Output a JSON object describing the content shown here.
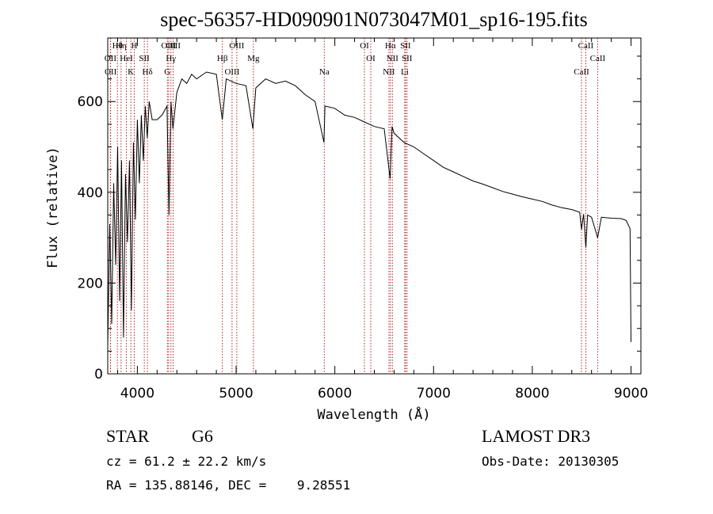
{
  "chart_data": {
    "type": "line",
    "title": "spec-56357-HD090901N073047M01_sp16-195.fits",
    "xlabel": "Wavelength (Å)",
    "ylabel": "Flux (relative)",
    "xlim": [
      3700,
      9100
    ],
    "ylim": [
      0,
      740
    ],
    "xticks": [
      4000,
      5000,
      6000,
      7000,
      8000,
      9000
    ],
    "yticks": [
      0,
      200,
      400,
      600
    ],
    "grid": false,
    "series": [
      {
        "name": "spectrum",
        "x": [
          3700,
          3720,
          3740,
          3760,
          3780,
          3800,
          3820,
          3840,
          3860,
          3880,
          3900,
          3920,
          3940,
          3960,
          3980,
          4000,
          4020,
          4040,
          4060,
          4080,
          4100,
          4120,
          4150,
          4200,
          4250,
          4300,
          4320,
          4340,
          4360,
          4400,
          4450,
          4500,
          4550,
          4600,
          4700,
          4800,
          4860,
          4900,
          5000,
          5100,
          5170,
          5200,
          5300,
          5400,
          5500,
          5600,
          5700,
          5800,
          5890,
          5900,
          6000,
          6100,
          6200,
          6300,
          6400,
          6500,
          6560,
          6580,
          6600,
          6700,
          6800,
          6900,
          7000,
          7100,
          7200,
          7300,
          7400,
          7500,
          7600,
          7700,
          7800,
          7900,
          8000,
          8100,
          8200,
          8300,
          8400,
          8480,
          8498,
          8520,
          8542,
          8560,
          8600,
          8662,
          8700,
          8800,
          8900,
          8950,
          8990,
          9000
        ],
        "y": [
          60,
          330,
          110,
          420,
          240,
          500,
          160,
          470,
          80,
          440,
          290,
          470,
          140,
          510,
          340,
          560,
          420,
          570,
          470,
          590,
          520,
          600,
          560,
          560,
          570,
          590,
          350,
          600,
          540,
          620,
          650,
          640,
          660,
          650,
          665,
          660,
          560,
          650,
          640,
          635,
          540,
          630,
          650,
          640,
          645,
          635,
          615,
          600,
          510,
          590,
          585,
          570,
          565,
          555,
          545,
          540,
          430,
          545,
          530,
          510,
          500,
          485,
          470,
          455,
          445,
          435,
          425,
          418,
          410,
          402,
          396,
          390,
          385,
          380,
          372,
          366,
          362,
          356,
          318,
          352,
          278,
          350,
          345,
          300,
          345,
          343,
          342,
          338,
          320,
          70
        ]
      }
    ],
    "lines": [
      {
        "name": "Hθ",
        "x": 3798
      },
      {
        "name": "OII",
        "x": 3727
      },
      {
        "name": "OII",
        "x": 3729
      },
      {
        "name": "Hη",
        "x": 3835
      },
      {
        "name": "HeI",
        "x": 3889
      },
      {
        "name": "K",
        "x": 3934
      },
      {
        "name": "H",
        "x": 3969
      },
      {
        "name": "SII",
        "x": 4070
      },
      {
        "name": "Hδ",
        "x": 4102
      },
      {
        "name": "OIII",
        "x": 4317
      },
      {
        "name": "Hγ",
        "x": 4340
      },
      {
        "name": "G",
        "x": 4304
      },
      {
        "name": "OIII",
        "x": 4363
      },
      {
        "name": "Hβ",
        "x": 4861
      },
      {
        "name": "OIII",
        "x": 4959
      },
      {
        "name": "OIII",
        "x": 5007
      },
      {
        "name": "Mg",
        "x": 5175
      },
      {
        "name": "Na",
        "x": 5893
      },
      {
        "name": "OI",
        "x": 6300
      },
      {
        "name": "OI",
        "x": 6364
      },
      {
        "name": "NII",
        "x": 6548
      },
      {
        "name": "Hα",
        "x": 6563
      },
      {
        "name": "NII",
        "x": 6583
      },
      {
        "name": "Li",
        "x": 6708
      },
      {
        "name": "SII",
        "x": 6716
      },
      {
        "name": "SII",
        "x": 6731
      },
      {
        "name": "CaII",
        "x": 8498
      },
      {
        "name": "CaII",
        "x": 8542
      },
      {
        "name": "CaII",
        "x": 8662
      }
    ]
  },
  "info": {
    "class": "STAR",
    "subclass": "G6",
    "survey": "LAMOST DR3",
    "cz": "cz = 61.2 ± 22.2 km/s",
    "obs_date": "Obs-Date: 20130305",
    "radec": "RA = 135.88146, DEC =    9.28551"
  }
}
